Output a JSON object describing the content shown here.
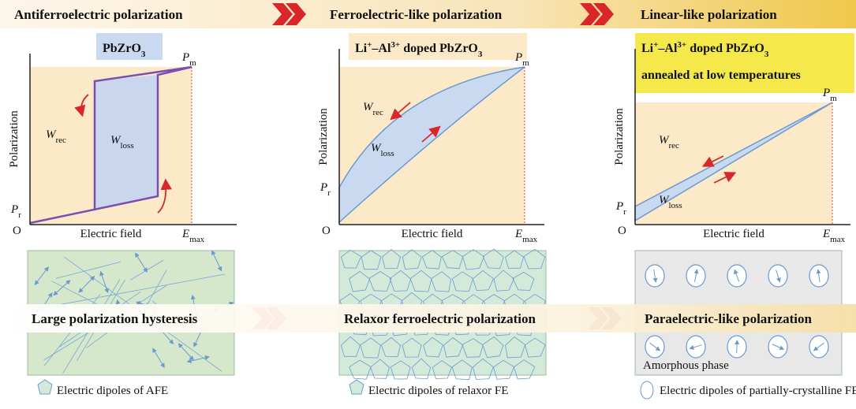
{
  "banner": {
    "titles": [
      "Antiferroelectric polarization",
      "Ferroelectric-like polarization",
      "Linear-like polarization"
    ]
  },
  "panels": [
    {
      "material": [
        "PbZrO",
        "3"
      ],
      "y_label": "Polarization",
      "x_label": "Electric field",
      "origin": "O",
      "pr": [
        "P",
        "r"
      ],
      "pm": [
        "P",
        "m"
      ],
      "emax": [
        "E",
        "max"
      ],
      "w_rec": [
        "W",
        "rec"
      ],
      "w_loss": [
        "W",
        "loss"
      ]
    },
    {
      "material": [
        "Li",
        "+",
        "–Al",
        "3+",
        " doped PbZrO",
        "3"
      ],
      "y_label": "Polarization",
      "x_label": "Electric field",
      "origin": "O",
      "pr": [
        "P",
        "r"
      ],
      "pm": [
        "P",
        "m"
      ],
      "emax": [
        "E",
        "max"
      ],
      "w_rec": [
        "W",
        "rec"
      ],
      "w_loss": [
        "W",
        "loss"
      ]
    },
    {
      "material": [
        "Li",
        "+",
        "–Al",
        "3+",
        " doped PbZrO",
        "3"
      ],
      "material_line2": "annealed at low temperatures",
      "y_label": "Polarization",
      "x_label": "Electric field",
      "origin": "O",
      "pr": [
        "P",
        "r"
      ],
      "pm": [
        "P",
        "m"
      ],
      "emax": [
        "E",
        "max"
      ],
      "w_rec": [
        "W",
        "rec"
      ],
      "w_loss": [
        "W",
        "loss"
      ]
    }
  ],
  "bottom": {
    "captions": [
      "Large polarization hysteresis",
      "Relaxor ferroelectric polarization",
      "Paraelectric-like polarization"
    ],
    "amorphous": "Amorphous phase",
    "legend": [
      "Electric dipoles of AFE",
      "Electric dipoles of relaxor FE",
      "Electric dipoles of partially-crystalline FE"
    ]
  }
}
